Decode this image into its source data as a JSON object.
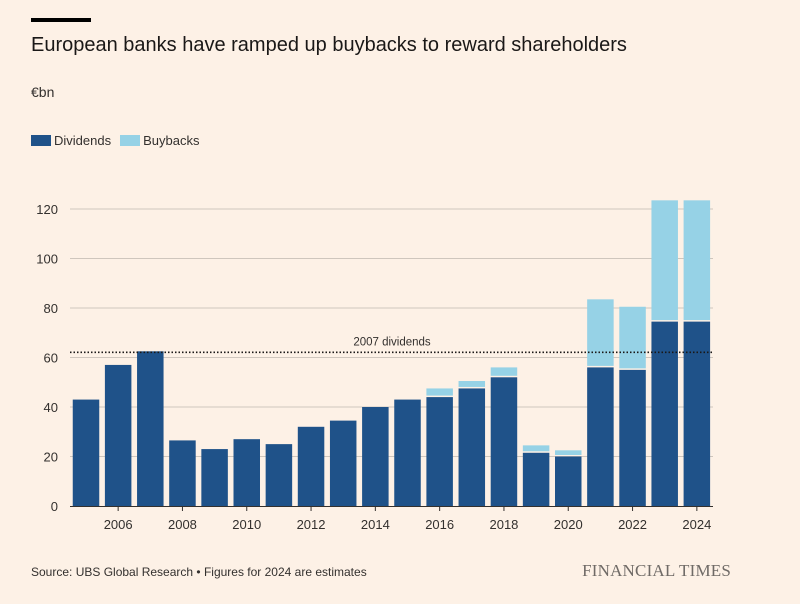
{
  "title": "European banks have ramped up buybacks to reward shareholders",
  "unit_label": "€bn",
  "legend": [
    {
      "label": "Dividends",
      "color": "#1f5289"
    },
    {
      "label": "Buybacks",
      "color": "#96d2e6"
    }
  ],
  "reference_line": {
    "label": "2007 dividends",
    "value": 62.5
  },
  "source": "Source: UBS Global Research • Figures for 2024 are estimates",
  "brand": "FINANCIAL TIMES",
  "chart_data": {
    "type": "bar",
    "stacked": true,
    "title": "European banks have ramped up buybacks to reward shareholders",
    "ylabel": "€bn",
    "xlabel": "",
    "ylim": [
      0,
      130
    ],
    "yticks": [
      0,
      20,
      40,
      60,
      80,
      100,
      120
    ],
    "categories": [
      "2005",
      "2006",
      "2007",
      "2008",
      "2009",
      "2010",
      "2011",
      "2012",
      "2013",
      "2014",
      "2015",
      "2016",
      "2017",
      "2018",
      "2019",
      "2020",
      "2021",
      "2022",
      "2023",
      "2024"
    ],
    "xtick_labels": [
      "2006",
      "2008",
      "2010",
      "2012",
      "2014",
      "2016",
      "2018",
      "2020",
      "2022",
      "2024"
    ],
    "series": [
      {
        "name": "Dividends",
        "color": "#1f5289",
        "values": [
          43,
          57,
          62.5,
          26.5,
          23,
          27,
          25,
          32,
          34.5,
          40,
          43,
          44,
          47.5,
          52,
          21.5,
          20,
          56,
          55,
          74.5,
          74.5
        ]
      },
      {
        "name": "Buybacks",
        "color": "#96d2e6",
        "values": [
          0,
          0,
          0,
          0,
          0,
          0,
          0,
          0,
          0,
          0,
          0,
          3.5,
          3,
          4,
          3,
          2.5,
          27.5,
          25.5,
          49,
          49
        ]
      }
    ],
    "grid": true,
    "legend_position": "top-left"
  }
}
